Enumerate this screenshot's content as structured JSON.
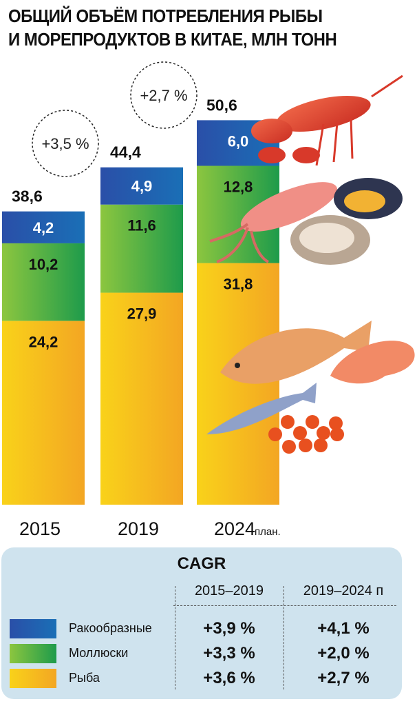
{
  "title_line1": "ОБЩИЙ ОБЪЁМ ПОТРЕБЛЕНИЯ РЫБЫ",
  "title_line2": "И МОРЕПРОДУКТОВ В КИТАЕ, МЛН ТОНН",
  "colors": {
    "crustaceans": "#1c45a0",
    "molluscs": "#3aa547",
    "fish": "#f6b519",
    "panel": "#cfe3ee"
  },
  "chart_data": {
    "type": "bar",
    "stacked": true,
    "categories": [
      "2015",
      "2019",
      "2024"
    ],
    "category_note": "план.",
    "series": [
      {
        "name": "Рыба",
        "values": [
          24.2,
          27.9,
          31.8
        ]
      },
      {
        "name": "Моллюски",
        "values": [
          10.2,
          11.6,
          12.8
        ]
      },
      {
        "name": "Ракообразные",
        "values": [
          4.2,
          4.9,
          6.0
        ]
      }
    ],
    "value_labels": [
      [
        "24,2",
        "27,9",
        "31,8"
      ],
      [
        "10,2",
        "11,6",
        "12,8"
      ],
      [
        "4,2",
        "4,9",
        "6,0"
      ]
    ],
    "totals": [
      38.6,
      44.4,
      50.6
    ],
    "total_labels": [
      "38,6",
      "44,4",
      "50,6"
    ],
    "growth_annotations": [
      {
        "between": [
          "2015",
          "2019"
        ],
        "label": "+3,5 %"
      },
      {
        "between": [
          "2019",
          "2024"
        ],
        "label": "+2,7 %"
      }
    ]
  },
  "cagr": {
    "title": "CAGR",
    "columns": [
      "2015–2019",
      "2019–2024 п"
    ],
    "rows": [
      {
        "name": "Ракообразные",
        "values": [
          "+3,9 %",
          "+4,1 %"
        ]
      },
      {
        "name": "Моллюски",
        "values": [
          "+3,3 %",
          "+2,0 %"
        ]
      },
      {
        "name": "Рыба",
        "values": [
          "+3,6 %",
          "+2,7 %"
        ]
      }
    ]
  }
}
